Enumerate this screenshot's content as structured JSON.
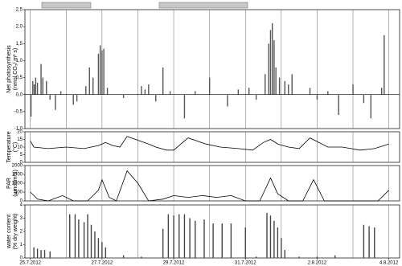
{
  "chart_data": [
    {
      "type": "bar",
      "ylabel": [
        "Net photosynthesis",
        "(nmol CO₂/ m² s)"
      ],
      "color": "#555555",
      "x": [
        0.02,
        0.07,
        0.11,
        0.15,
        0.2,
        0.3,
        0.35,
        0.45,
        0.55,
        0.7,
        0.85,
        1.2,
        1.3,
        1.55,
        1.65,
        1.75,
        1.9,
        1.95,
        2.0,
        2.05,
        2.15,
        2.6,
        3.1,
        3.2,
        3.3,
        3.5,
        3.7,
        3.9,
        4.3,
        4.6,
        5.0,
        5.5,
        5.8,
        6.1,
        6.3,
        6.55,
        6.65,
        6.7,
        6.75,
        6.8,
        6.85,
        6.95,
        7.1,
        7.2,
        7.3,
        7.8,
        8.0,
        8.3,
        8.6,
        9.0,
        9.3,
        9.5,
        9.8,
        9.87
      ],
      "values": [
        -0.65,
        0.4,
        0.3,
        0.5,
        0.35,
        0.9,
        0.5,
        0.4,
        -0.15,
        -0.45,
        0.1,
        -0.3,
        -0.2,
        0.25,
        0.8,
        0.5,
        1.2,
        1.45,
        1.3,
        1.35,
        0.2,
        -0.1,
        0.25,
        0.15,
        0.3,
        -0.2,
        0.8,
        0.1,
        -0.7,
        0.1,
        0.5,
        -0.35,
        0.15,
        0.2,
        -0.15,
        0.6,
        1.5,
        1.9,
        2.1,
        1.6,
        0.8,
        0.5,
        0.4,
        0.3,
        0.6,
        0.2,
        -0.15,
        0.1,
        -0.6,
        0.3,
        -0.25,
        -0.7,
        0.2,
        1.75
      ],
      "ylim": [
        -1,
        2.5
      ],
      "yticks": [
        {
          "value": -1,
          "label": "-1,0"
        },
        {
          "value": -0.5,
          "label": "-0,5"
        },
        {
          "value": 0,
          "label": "0,0"
        },
        {
          "value": 0.5,
          "label": "0,5"
        },
        {
          "value": 1,
          "label": "1,0"
        },
        {
          "value": 1.5,
          "label": "1,5"
        },
        {
          "value": 2,
          "label": "2,0"
        },
        {
          "value": 2.5,
          "label": "2,5"
        }
      ]
    },
    {
      "type": "line",
      "ylabel": [
        "Temperature",
        "(°C)"
      ],
      "color": "#000000",
      "x": [
        0,
        0.1,
        0.5,
        1,
        1.5,
        1.9,
        2.1,
        2.3,
        2.5,
        2.7,
        3.3,
        3.5,
        3.8,
        4.0,
        4.4,
        4.9,
        5.3,
        5.8,
        6.2,
        6.5,
        6.7,
        6.9,
        7.2,
        7.5,
        7.8,
        8.3,
        8.7,
        9.2,
        9.6,
        10.0
      ],
      "values": [
        14,
        10,
        9,
        10,
        9,
        11,
        13,
        11,
        10,
        17,
        12,
        10,
        8,
        8,
        16,
        12,
        10,
        9,
        8,
        13,
        15,
        12,
        10,
        9,
        16,
        10,
        10,
        8,
        9,
        12
      ],
      "ylim": [
        0,
        20
      ],
      "yticks": [
        0,
        5,
        10,
        15,
        20
      ]
    },
    {
      "type": "line",
      "ylabel": [
        "PAR",
        "(µmol/m²s)"
      ],
      "color": "#000000",
      "x": [
        0,
        0.2,
        0.5,
        0.9,
        1.2,
        1.6,
        1.9,
        2.0,
        2.2,
        2.4,
        2.7,
        3.0,
        3.3,
        3.7,
        4.0,
        4.4,
        4.8,
        5.2,
        5.6,
        6.0,
        6.4,
        6.7,
        6.9,
        7.2,
        7.6,
        7.9,
        8.2,
        8.8,
        9.3,
        9.7,
        10.0
      ],
      "values": [
        500,
        100,
        0,
        300,
        0,
        0,
        600,
        1200,
        200,
        0,
        1700,
        1000,
        0,
        100,
        300,
        200,
        300,
        200,
        300,
        0,
        0,
        1300,
        400,
        0,
        0,
        1200,
        0,
        0,
        0,
        0,
        600
      ],
      "ylim": [
        0,
        2000
      ],
      "yticks": [
        0,
        500,
        1000,
        1500,
        2000
      ]
    },
    {
      "type": "bar",
      "ylabel": [
        "water content",
        "(% dry weight)"
      ],
      "color": "#444444",
      "x": [
        0.1,
        0.2,
        0.3,
        0.4,
        0.55,
        1.1,
        1.25,
        1.35,
        1.5,
        1.6,
        1.7,
        1.8,
        1.9,
        2.0,
        2.1,
        2.6,
        3.1,
        3.7,
        3.85,
        4.0,
        4.15,
        4.3,
        4.45,
        4.6,
        4.85,
        5.1,
        5.35,
        5.6,
        6.0,
        6.3,
        6.6,
        6.7,
        6.8,
        6.9,
        7.0,
        7.1,
        7.5,
        8.0,
        8.5,
        9.3,
        9.45,
        9.6
      ],
      "values": [
        0.8,
        0.7,
        0.6,
        0.6,
        0.5,
        3.3,
        3.3,
        2.9,
        2.7,
        3.3,
        2.5,
        2.0,
        1.5,
        1.2,
        0.8,
        0.2,
        0.1,
        2.2,
        3.3,
        3.2,
        3.3,
        3.3,
        3.0,
        2.8,
        2.9,
        2.6,
        2.6,
        2.6,
        2.3,
        0.1,
        3.4,
        3.2,
        2.8,
        2.3,
        1.5,
        0.6,
        0.1,
        0.1,
        0.2,
        2.5,
        2.4,
        2.3
      ],
      "ylim": [
        0,
        4
      ],
      "yticks": [
        0,
        1,
        2,
        3,
        4
      ],
      "xlim": [
        -0.15,
        10.3
      ],
      "xticks": [
        {
          "value": 0,
          "label": "25.7.2012"
        },
        {
          "value": 2,
          "label": "27.7.2012"
        },
        {
          "value": 4,
          "label": "29.7.2012"
        },
        {
          "value": 6,
          "label": "31.7.2012"
        },
        {
          "value": 8,
          "label": "2.8.2012"
        },
        {
          "value": 10,
          "label": "4.8.2012"
        }
      ],
      "minor_xticks": [
        1,
        3,
        5,
        7,
        9
      ]
    }
  ]
}
